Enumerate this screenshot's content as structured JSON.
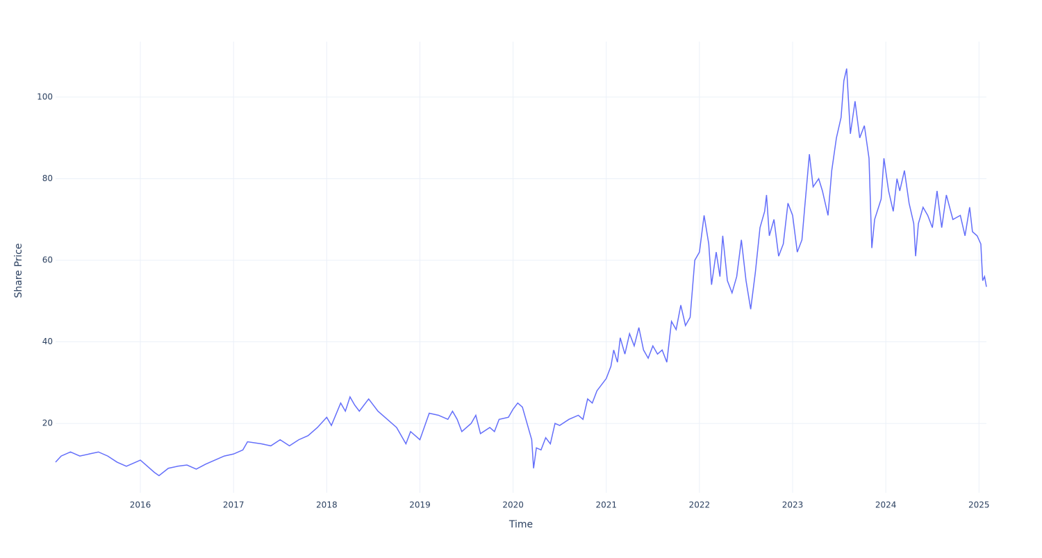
{
  "chart_data": {
    "type": "line",
    "xlabel": "Time",
    "ylabel": "Share Price",
    "color": "#636efa",
    "grid": true,
    "x": [
      2015.09,
      2015.15,
      2015.25,
      2015.35,
      2015.45,
      2015.55,
      2015.65,
      2015.75,
      2015.85,
      2015.95,
      2016.0,
      2016.05,
      2016.15,
      2016.2,
      2016.3,
      2016.4,
      2016.5,
      2016.6,
      2016.7,
      2016.8,
      2016.9,
      2017.0,
      2017.1,
      2017.15,
      2017.3,
      2017.4,
      2017.5,
      2017.6,
      2017.7,
      2017.8,
      2017.9,
      2018.0,
      2018.05,
      2018.15,
      2018.2,
      2018.25,
      2018.3,
      2018.35,
      2018.45,
      2018.55,
      2018.65,
      2018.75,
      2018.8,
      2018.85,
      2018.9,
      2018.95,
      2019.0,
      2019.1,
      2019.2,
      2019.3,
      2019.35,
      2019.4,
      2019.45,
      2019.55,
      2019.6,
      2019.65,
      2019.75,
      2019.8,
      2019.85,
      2019.95,
      2020.0,
      2020.05,
      2020.1,
      2020.15,
      2020.2,
      2020.22,
      2020.25,
      2020.3,
      2020.35,
      2020.4,
      2020.45,
      2020.5,
      2020.6,
      2020.7,
      2020.75,
      2020.8,
      2020.85,
      2020.9,
      2021.0,
      2021.05,
      2021.08,
      2021.12,
      2021.15,
      2021.2,
      2021.25,
      2021.3,
      2021.35,
      2021.4,
      2021.45,
      2021.5,
      2021.55,
      2021.6,
      2021.65,
      2021.7,
      2021.75,
      2021.8,
      2021.85,
      2021.9,
      2021.95,
      2022.0,
      2022.05,
      2022.1,
      2022.13,
      2022.18,
      2022.22,
      2022.25,
      2022.3,
      2022.35,
      2022.4,
      2022.45,
      2022.5,
      2022.55,
      2022.6,
      2022.65,
      2022.7,
      2022.72,
      2022.75,
      2022.8,
      2022.85,
      2022.9,
      2022.95,
      2023.0,
      2023.05,
      2023.1,
      2023.13,
      2023.18,
      2023.22,
      2023.28,
      2023.32,
      2023.38,
      2023.42,
      2023.47,
      2023.52,
      2023.55,
      2023.58,
      2023.62,
      2023.67,
      2023.72,
      2023.77,
      2023.82,
      2023.85,
      2023.88,
      2023.95,
      2023.98,
      2024.03,
      2024.08,
      2024.12,
      2024.15,
      2024.2,
      2024.25,
      2024.3,
      2024.32,
      2024.35,
      2024.4,
      2024.45,
      2024.5,
      2024.55,
      2024.6,
      2024.65,
      2024.72,
      2024.8,
      2024.85,
      2024.9,
      2024.93,
      2024.98,
      2025.02,
      2025.04,
      2025.06,
      2025.08
    ],
    "values": [
      10.5,
      12,
      13,
      12,
      12.5,
      13,
      12,
      10.5,
      9.5,
      10.5,
      11,
      10,
      8,
      7.2,
      9,
      9.5,
      9.8,
      8.8,
      10,
      11,
      12,
      12.5,
      13.5,
      15.5,
      15,
      14.5,
      16,
      14.5,
      16,
      17,
      19,
      21.5,
      19.5,
      25,
      23,
      26.5,
      24.5,
      23,
      26,
      23,
      21,
      19,
      17,
      15,
      18,
      17,
      16,
      22.5,
      22,
      21,
      23,
      21,
      18,
      20,
      22,
      17.5,
      19,
      18,
      21,
      21.5,
      23.5,
      25,
      24,
      20,
      16,
      9,
      14,
      13.5,
      16.5,
      15,
      20,
      19.5,
      21,
      22,
      21,
      26,
      25,
      28,
      31,
      34,
      38,
      35,
      41,
      37,
      42,
      39,
      43.5,
      38,
      36,
      39,
      37,
      38,
      35,
      45,
      43,
      49,
      44,
      46,
      60,
      62,
      71,
      64,
      54,
      62,
      56,
      66,
      55,
      52,
      56,
      65,
      55,
      48,
      57,
      68,
      72,
      76,
      66,
      70,
      61,
      64,
      74,
      71,
      62,
      65,
      73,
      86,
      78,
      80,
      77,
      71,
      82,
      90,
      95,
      104,
      107,
      91,
      99,
      90,
      93,
      85,
      63,
      70,
      75,
      85,
      77,
      72,
      80,
      77,
      82,
      74,
      69,
      61,
      69,
      73,
      71,
      68,
      77,
      68,
      76,
      70,
      71,
      66,
      73,
      67,
      66,
      64,
      55,
      56,
      53.5
    ],
    "xlim": [
      2015.09,
      2025.08
    ],
    "xticks": [
      2016,
      2017,
      2018,
      2019,
      2020,
      2021,
      2022,
      2023,
      2024,
      2025
    ],
    "ylim": [
      3,
      113.6
    ],
    "yticks": [
      20,
      40,
      60,
      80,
      100
    ]
  }
}
